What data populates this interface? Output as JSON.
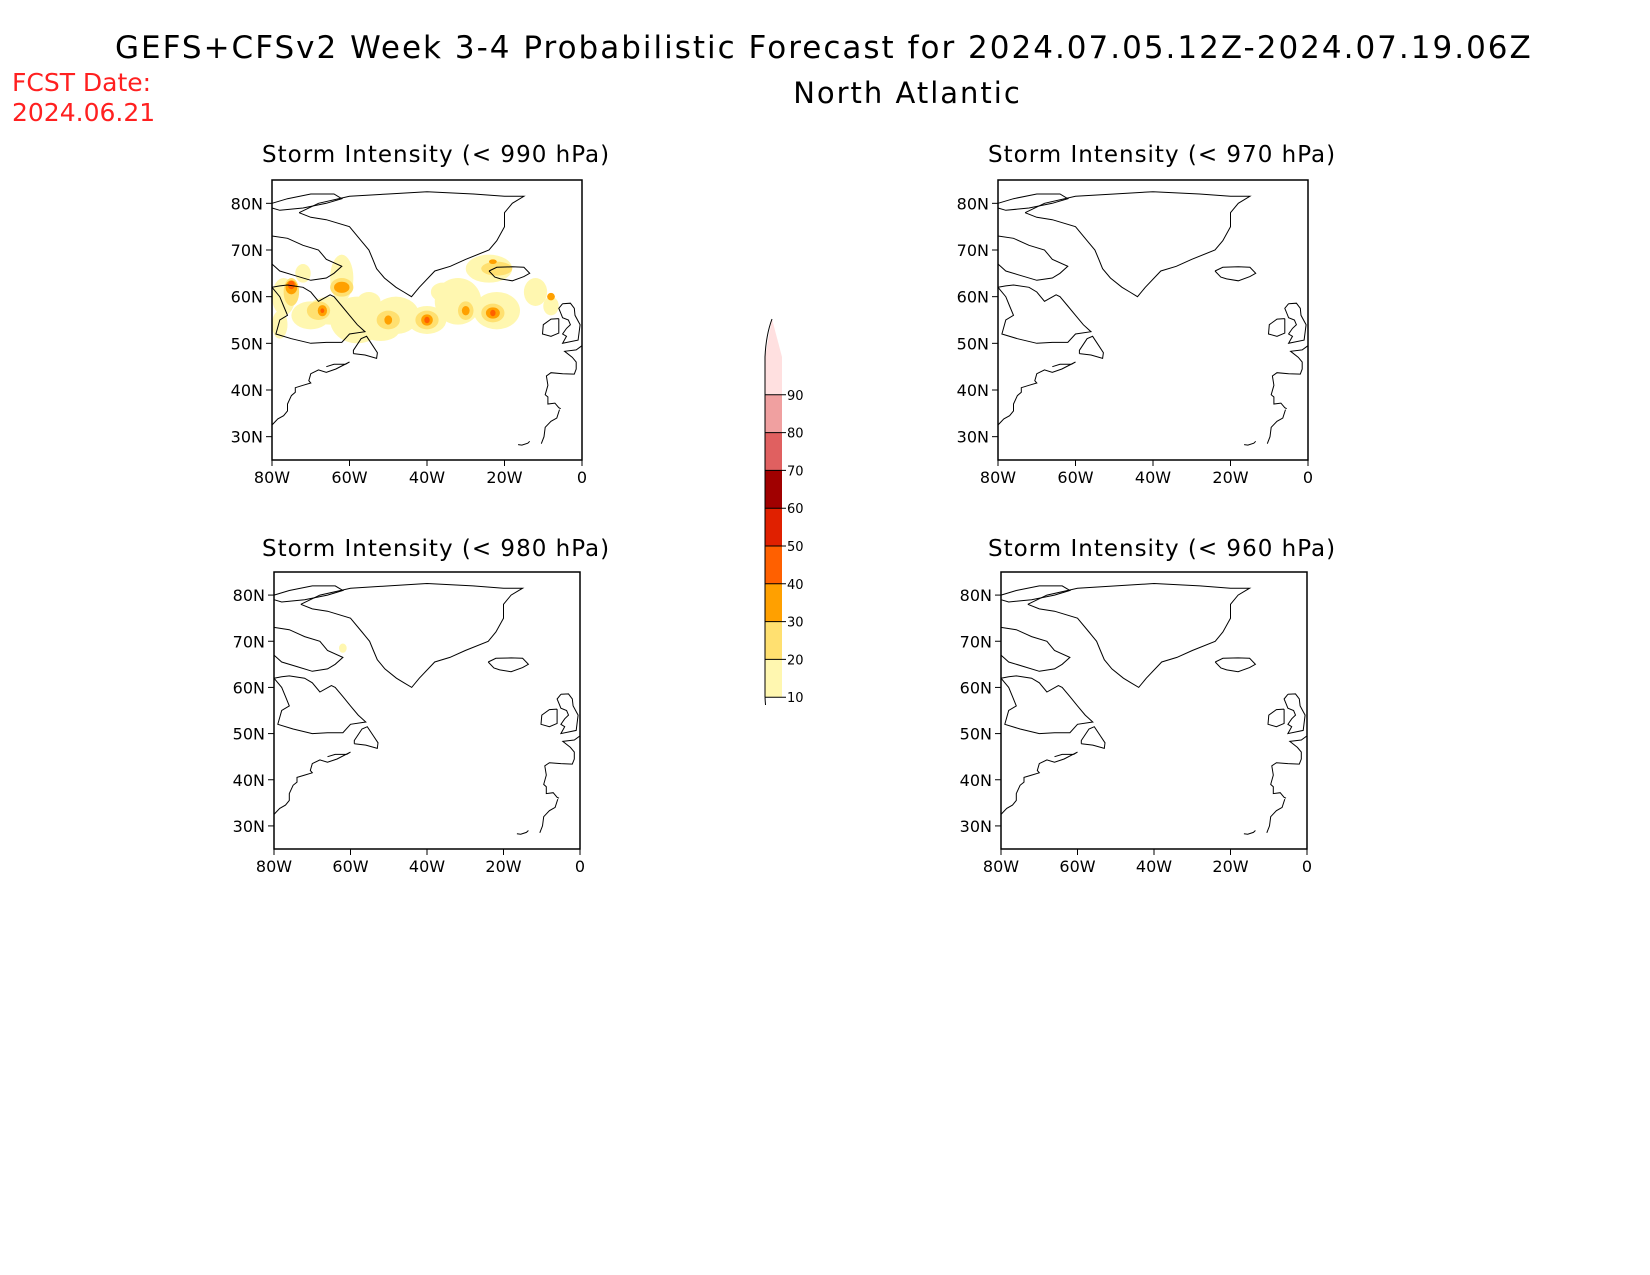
{
  "header": {
    "title": "GEFS+CFSv2 Week 3-4 Probabilistic Forecast for 2024.07.05.12Z-2024.07.19.06Z",
    "region": "North Atlantic",
    "fcst_label": "FCST Date:",
    "fcst_date": "2024.06.21"
  },
  "axes": {
    "lat_labels": [
      "80N",
      "70N",
      "60N",
      "50N",
      "40N",
      "30N"
    ],
    "lon_labels": [
      "80W",
      "60W",
      "40W",
      "20W",
      "0"
    ]
  },
  "panels": [
    {
      "id": "p990",
      "title": "Storm Intensity (< 990 hPa)",
      "has_data": true
    },
    {
      "id": "p970",
      "title": "Storm Intensity (< 970 hPa)",
      "has_data": false
    },
    {
      "id": "p980",
      "title": "Storm Intensity (< 980 hPa)",
      "has_data": true
    },
    {
      "id": "p960",
      "title": "Storm Intensity (< 960 hPa)",
      "has_data": false
    }
  ],
  "colorbar": {
    "labels": [
      "10",
      "20",
      "30",
      "40",
      "50",
      "60",
      "70",
      "80",
      "90"
    ],
    "colors": [
      "#fff7b0",
      "#ffe070",
      "#ffa000",
      "#ff6000",
      "#e02000",
      "#a00000",
      "#e06060",
      "#f0a0a0",
      "#ffe0e0"
    ]
  }
}
